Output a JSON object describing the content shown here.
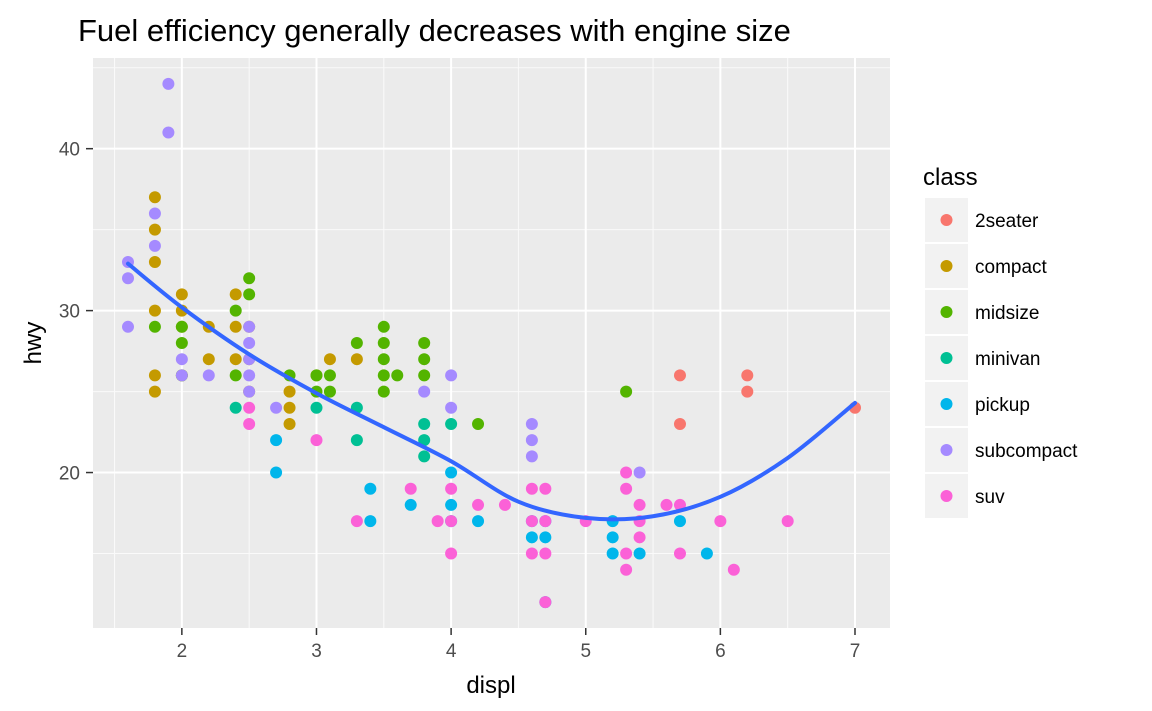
{
  "chart_data": {
    "type": "scatter",
    "title": "Fuel efficiency generally decreases with engine size",
    "xlabel": "displ",
    "ylabel": "hwy",
    "xlim": [
      1.34,
      7.26
    ],
    "ylim": [
      10.4,
      45.6
    ],
    "x_ticks": [
      "2",
      "3",
      "4",
      "5",
      "6",
      "7"
    ],
    "y_ticks": [
      "20",
      "30",
      "40"
    ],
    "grid": true,
    "legend": {
      "title": "class",
      "position": "right",
      "entries": [
        {
          "label": "2seater",
          "color": "#F8766D"
        },
        {
          "label": "compact",
          "color": "#C49A00"
        },
        {
          "label": "midsize",
          "color": "#53B400"
        },
        {
          "label": "minivan",
          "color": "#00C094"
        },
        {
          "label": "pickup",
          "color": "#00B6EB"
        },
        {
          "label": "subcompact",
          "color": "#A58AFF"
        },
        {
          "label": "suv",
          "color": "#FB61D7"
        }
      ]
    },
    "series": [
      {
        "name": "2seater",
        "color": "#F8766D",
        "points": [
          [
            5.7,
            26
          ],
          [
            5.7,
            23
          ],
          [
            6.2,
            26
          ],
          [
            6.2,
            25
          ],
          [
            7.0,
            24
          ]
        ]
      },
      {
        "name": "compact",
        "color": "#C49A00",
        "points": [
          [
            1.8,
            37
          ],
          [
            1.8,
            35
          ],
          [
            1.8,
            33
          ],
          [
            1.8,
            30
          ],
          [
            1.8,
            26
          ],
          [
            1.8,
            25
          ],
          [
            2.0,
            31
          ],
          [
            2.0,
            30
          ],
          [
            2.0,
            29
          ],
          [
            2.0,
            26
          ],
          [
            2.2,
            29
          ],
          [
            2.2,
            27
          ],
          [
            2.4,
            31
          ],
          [
            2.4,
            29
          ],
          [
            2.4,
            27
          ],
          [
            2.5,
            29
          ],
          [
            2.5,
            27
          ],
          [
            2.5,
            25
          ],
          [
            2.8,
            25
          ],
          [
            2.8,
            24
          ],
          [
            2.8,
            23
          ],
          [
            3.0,
            26
          ],
          [
            3.1,
            27
          ],
          [
            3.3,
            27
          ]
        ]
      },
      {
        "name": "midsize",
        "color": "#53B400",
        "points": [
          [
            1.8,
            29
          ],
          [
            2.0,
            29
          ],
          [
            2.0,
            28
          ],
          [
            2.0,
            26
          ],
          [
            2.4,
            30
          ],
          [
            2.4,
            26
          ],
          [
            2.5,
            32
          ],
          [
            2.5,
            31
          ],
          [
            2.8,
            26
          ],
          [
            3.0,
            26
          ],
          [
            3.0,
            25
          ],
          [
            3.1,
            26
          ],
          [
            3.1,
            25
          ],
          [
            3.3,
            28
          ],
          [
            3.5,
            29
          ],
          [
            3.5,
            28
          ],
          [
            3.5,
            27
          ],
          [
            3.5,
            26
          ],
          [
            3.5,
            25
          ],
          [
            3.6,
            26
          ],
          [
            3.8,
            28
          ],
          [
            3.8,
            27
          ],
          [
            3.8,
            26
          ],
          [
            4.2,
            23
          ],
          [
            5.3,
            25
          ]
        ]
      },
      {
        "name": "minivan",
        "color": "#00C094",
        "points": [
          [
            2.4,
            24
          ],
          [
            3.0,
            24
          ],
          [
            3.3,
            24
          ],
          [
            3.3,
            22
          ],
          [
            3.8,
            23
          ],
          [
            3.8,
            22
          ],
          [
            3.8,
            21
          ],
          [
            4.0,
            23
          ]
        ]
      },
      {
        "name": "pickup",
        "color": "#00B6EB",
        "points": [
          [
            2.7,
            22
          ],
          [
            2.7,
            20
          ],
          [
            3.4,
            19
          ],
          [
            3.4,
            17
          ],
          [
            3.7,
            18
          ],
          [
            4.0,
            20
          ],
          [
            4.0,
            18
          ],
          [
            4.0,
            17
          ],
          [
            4.2,
            17
          ],
          [
            4.6,
            17
          ],
          [
            4.6,
            16
          ],
          [
            4.7,
            17
          ],
          [
            4.7,
            16
          ],
          [
            4.7,
            12
          ],
          [
            5.2,
            17
          ],
          [
            5.2,
            16
          ],
          [
            5.2,
            15
          ],
          [
            5.4,
            15
          ],
          [
            5.7,
            17
          ],
          [
            5.9,
            15
          ]
        ]
      },
      {
        "name": "subcompact",
        "color": "#A58AFF",
        "points": [
          [
            1.6,
            33
          ],
          [
            1.6,
            32
          ],
          [
            1.6,
            29
          ],
          [
            1.8,
            36
          ],
          [
            1.8,
            34
          ],
          [
            1.9,
            44
          ],
          [
            1.9,
            41
          ],
          [
            2.0,
            27
          ],
          [
            2.0,
            26
          ],
          [
            2.2,
            26
          ],
          [
            2.5,
            29
          ],
          [
            2.5,
            28
          ],
          [
            2.5,
            27
          ],
          [
            2.5,
            26
          ],
          [
            2.5,
            25
          ],
          [
            2.7,
            24
          ],
          [
            3.8,
            25
          ],
          [
            4.0,
            26
          ],
          [
            4.0,
            24
          ],
          [
            4.6,
            23
          ],
          [
            4.6,
            22
          ],
          [
            4.6,
            21
          ],
          [
            5.4,
            20
          ]
        ]
      },
      {
        "name": "suv",
        "color": "#FB61D7",
        "points": [
          [
            2.5,
            24
          ],
          [
            2.5,
            23
          ],
          [
            3.0,
            22
          ],
          [
            3.3,
            17
          ],
          [
            3.7,
            19
          ],
          [
            3.9,
            17
          ],
          [
            4.0,
            19
          ],
          [
            4.0,
            17
          ],
          [
            4.0,
            15
          ],
          [
            4.2,
            18
          ],
          [
            4.4,
            18
          ],
          [
            4.6,
            19
          ],
          [
            4.6,
            17
          ],
          [
            4.6,
            15
          ],
          [
            4.7,
            19
          ],
          [
            4.7,
            17
          ],
          [
            4.7,
            15
          ],
          [
            4.7,
            12
          ],
          [
            5.0,
            17
          ],
          [
            5.3,
            20
          ],
          [
            5.3,
            19
          ],
          [
            5.3,
            15
          ],
          [
            5.3,
            14
          ],
          [
            5.4,
            18
          ],
          [
            5.4,
            17
          ],
          [
            5.4,
            16
          ],
          [
            5.6,
            18
          ],
          [
            5.7,
            18
          ],
          [
            5.7,
            15
          ],
          [
            6.0,
            17
          ],
          [
            6.1,
            14
          ],
          [
            6.5,
            17
          ]
        ]
      }
    ],
    "smooth_line": {
      "color": "#3366FF",
      "points": [
        [
          1.6,
          32.9
        ],
        [
          2.0,
          30.2
        ],
        [
          2.5,
          27.3
        ],
        [
          3.0,
          24.9
        ],
        [
          3.5,
          22.8
        ],
        [
          4.0,
          20.7
        ],
        [
          4.5,
          18.2
        ],
        [
          5.0,
          17.2
        ],
        [
          5.5,
          17.3
        ],
        [
          6.0,
          18.5
        ],
        [
          6.5,
          20.9
        ],
        [
          7.0,
          24.3
        ]
      ]
    }
  }
}
